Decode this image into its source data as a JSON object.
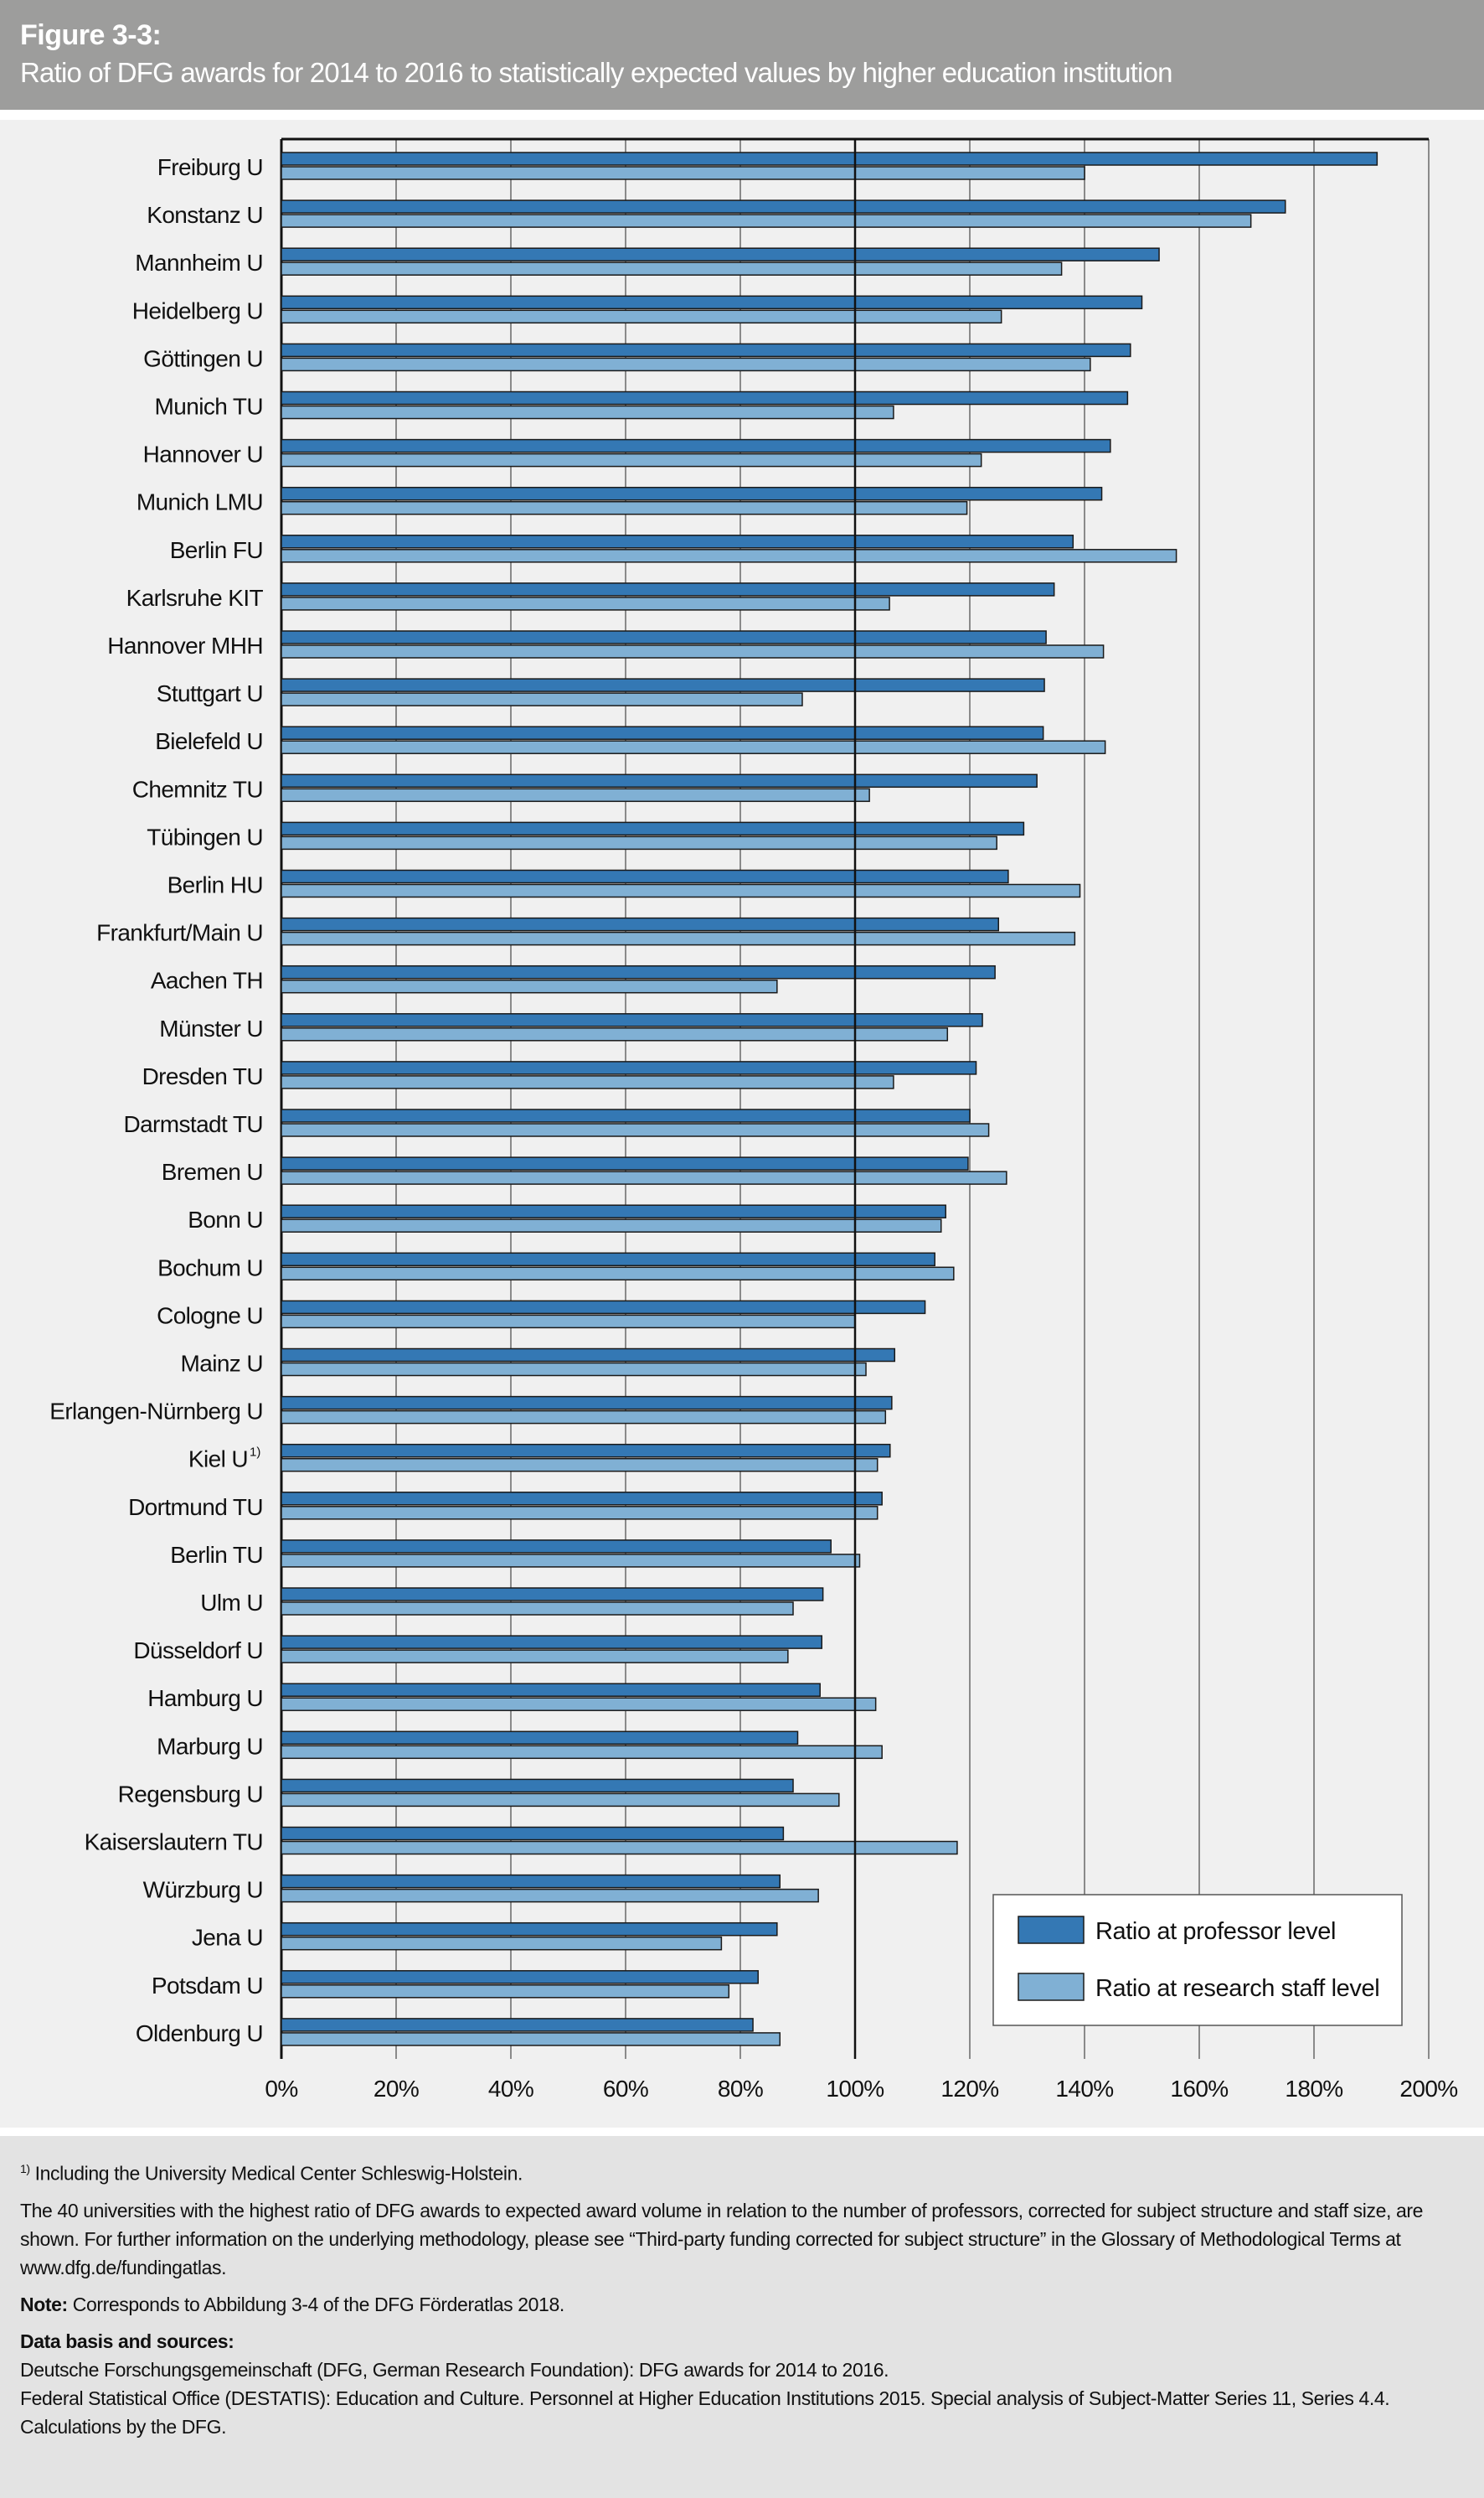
{
  "header": {
    "figure_number": "Figure 3-3:",
    "title": "Ratio of DFG awards for 2014 to 2016 to statistically expected values by higher education institution"
  },
  "colors": {
    "professor": "#3478b4",
    "staff": "#80b0d4",
    "header_bg": "#9d9d9c",
    "panel_bg": "#f0f0f0"
  },
  "chart_data": {
    "type": "bar",
    "orientation": "horizontal",
    "title": "Ratio of DFG awards for 2014 to 2016 to statistically expected values by higher education institution",
    "categories": [
      "Freiburg U",
      "Konstanz U",
      "Mannheim U",
      "Heidelberg U",
      "Göttingen U",
      "Munich TU",
      "Hannover U",
      "Munich LMU",
      "Berlin FU",
      "Karlsruhe KIT",
      "Hannover MHH",
      "Stuttgart U",
      "Bielefeld U",
      "Chemnitz TU",
      "Tübingen U",
      "Berlin HU",
      "Frankfurt/Main U",
      "Aachen TH",
      "Münster U",
      "Dresden TU",
      "Darmstadt TU",
      "Bremen U",
      "Bonn U",
      "Bochum U",
      "Cologne U",
      "Mainz U",
      "Erlangen-Nürnberg U",
      "Kiel U",
      "Dortmund TU",
      "Berlin TU",
      "Ulm U",
      "Düsseldorf U",
      "Hamburg U",
      "Marburg U",
      "Regensburg U",
      "Kaiserslautern TU",
      "Würzburg U",
      "Jena U",
      "Potsdam U",
      "Oldenburg U"
    ],
    "category_footnote": {
      "Kiel U": "1)"
    },
    "series": [
      {
        "name": "Ratio at professor level",
        "values": [
          191,
          175,
          153,
          150,
          148,
          147.5,
          144.5,
          143,
          138,
          134.7,
          133.3,
          133,
          132.8,
          131.7,
          129.4,
          126.7,
          125,
          124.4,
          122.2,
          121.1,
          120,
          119.7,
          115.8,
          113.9,
          112.2,
          106.9,
          106.4,
          106.1,
          104.7,
          95.8,
          94.4,
          94.2,
          93.9,
          90,
          89.2,
          87.5,
          86.9,
          86.4,
          83.1,
          82.2
        ]
      },
      {
        "name": "Ratio at research staff level",
        "values": [
          140,
          169,
          136,
          125.5,
          141,
          106.7,
          122,
          119.5,
          156,
          106,
          143.3,
          90.8,
          143.6,
          102.5,
          124.7,
          139.2,
          138.3,
          86.4,
          116.1,
          106.7,
          123.3,
          126.4,
          115,
          117.2,
          100,
          101.9,
          105.3,
          103.9,
          103.9,
          100.8,
          89.2,
          88.3,
          103.6,
          104.7,
          97.2,
          117.8,
          93.6,
          76.7,
          78,
          86.9
        ]
      }
    ],
    "xlim": [
      0,
      200
    ],
    "x_ticks": [
      "0%",
      "20%",
      "40%",
      "60%",
      "80%",
      "100%",
      "120%",
      "140%",
      "160%",
      "180%",
      "200%"
    ],
    "reference_line": 100,
    "grid": true,
    "legend_position": "bottom-right"
  },
  "footer": {
    "footnote_mark": "1)",
    "footnote": "Including the University Medical Center Schleswig-Holstein.",
    "description": "The 40 universities with the highest ratio of DFG awards to expected award volume in relation to the number of professors, corrected for subject structure and staff size, are shown. For further information on the underlying methodology, please see “Third-party funding corrected for subject structure” in the Glossary of Methodological Terms at www.dfg.de/fundingatlas.",
    "note_label": "Note:",
    "note": "Corresponds to Abbildung 3-4 of the DFG Förderatlas 2018.",
    "sources_label": "Data basis and sources:",
    "sources": [
      "Deutsche Forschungsgemeinschaft (DFG, German Research Foundation): DFG awards for 2014 to 2016.",
      "Federal Statistical Office (DESTATIS): Education and Culture. Personnel at Higher Education Institutions 2015. Special analysis of Subject-Matter Series 11, Series 4.4.",
      "Calculations by the DFG."
    ]
  }
}
